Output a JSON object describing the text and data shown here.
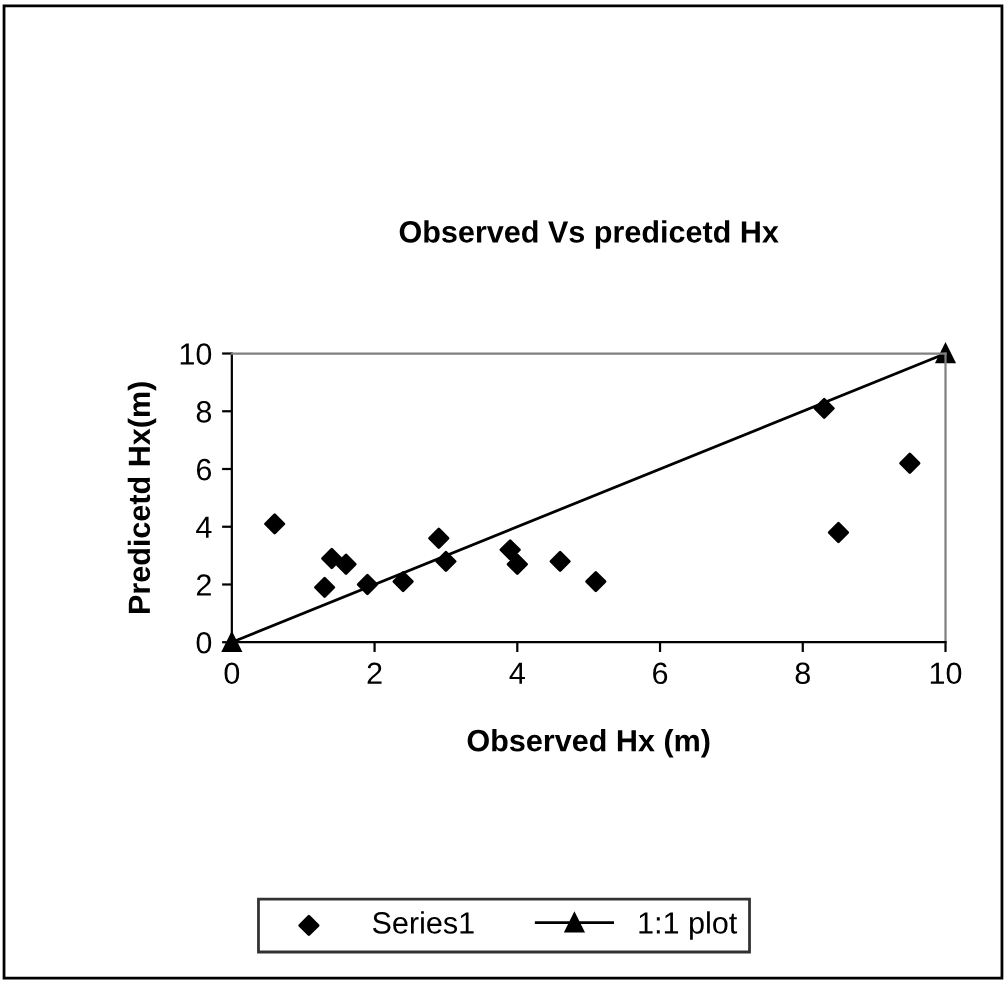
{
  "chart_data": {
    "type": "scatter",
    "title": "Observed Vs predicetd Hx",
    "xlabel": "Observed Hx (m)",
    "ylabel": "Predicetd Hx(m)",
    "xlim": [
      0,
      10
    ],
    "ylim": [
      0,
      10
    ],
    "xticks": [
      0,
      2,
      4,
      6,
      8,
      10
    ],
    "yticks": [
      0,
      2,
      4,
      6,
      8,
      10
    ],
    "grid": false,
    "legend": "bottom",
    "series": [
      {
        "name": "Series1",
        "marker": "diamond",
        "color": "#000000",
        "x": [
          0.6,
          1.3,
          1.4,
          1.6,
          1.9,
          2.4,
          2.9,
          3.0,
          3.9,
          4.0,
          4.6,
          5.1,
          8.3,
          8.5,
          9.5
        ],
        "values": [
          4.1,
          1.9,
          2.9,
          2.7,
          2.0,
          2.1,
          3.6,
          2.8,
          3.2,
          2.7,
          2.8,
          2.1,
          8.1,
          3.8,
          6.2
        ]
      },
      {
        "name": "1:1 plot",
        "type": "line",
        "marker": "triangle",
        "line_style": "solid",
        "color": "#000000",
        "x": [
          0,
          10
        ],
        "values": [
          0,
          10
        ]
      }
    ]
  }
}
